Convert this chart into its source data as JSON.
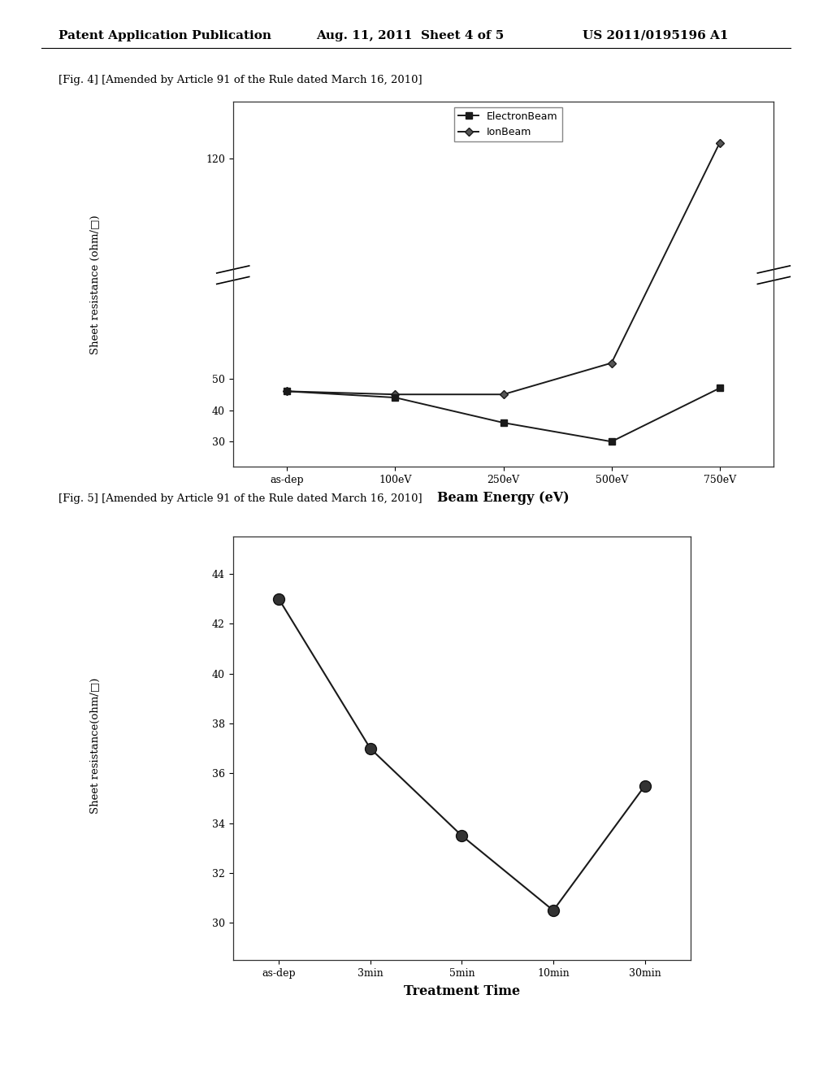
{
  "header_left": "Patent Application Publication",
  "header_mid": "Aug. 11, 2011  Sheet 4 of 5",
  "header_right": "US 2011/0195196 A1",
  "fig4_caption": "[Fig. 4] [Amended by Article 91 of the Rule dated March 16, 2010]",
  "fig4_xlabel": "Beam Energy (eV)",
  "fig4_ylabel": "Sheet resistance (ohm/□)",
  "fig4_xticks": [
    "as-dep",
    "100eV",
    "250eV",
    "500eV",
    "750eV"
  ],
  "fig4_yticks": [
    30,
    40,
    50,
    120
  ],
  "fig4_ylim": [
    22,
    138
  ],
  "fig4_electron_beam_x": [
    0,
    1,
    2,
    3,
    4
  ],
  "fig4_electron_beam_y": [
    46,
    44,
    36,
    30,
    47
  ],
  "fig4_ion_beam_x": [
    0,
    1,
    2,
    3,
    4
  ],
  "fig4_ion_beam_y": [
    46,
    45,
    45,
    55,
    125
  ],
  "fig5_caption": "[Fig. 5] [Amended by Article 91 of the Rule dated March 16, 2010]",
  "fig5_xlabel": "Treatment Time",
  "fig5_ylabel": "Sheet resistance(ohm/□)",
  "fig5_xticks": [
    "as-dep",
    "3min",
    "5min",
    "10min",
    "30min"
  ],
  "fig5_yticks": [
    30,
    32,
    34,
    36,
    38,
    40,
    42,
    44
  ],
  "fig5_ylim": [
    28.5,
    45.5
  ],
  "fig5_data_x": [
    0,
    1,
    2,
    3,
    4
  ],
  "fig5_data_y": [
    43,
    37,
    33.5,
    30.5,
    35.5
  ],
  "line_color": "#1a1a1a",
  "bg_color": "#ffffff",
  "page_bg": "#ffffff"
}
